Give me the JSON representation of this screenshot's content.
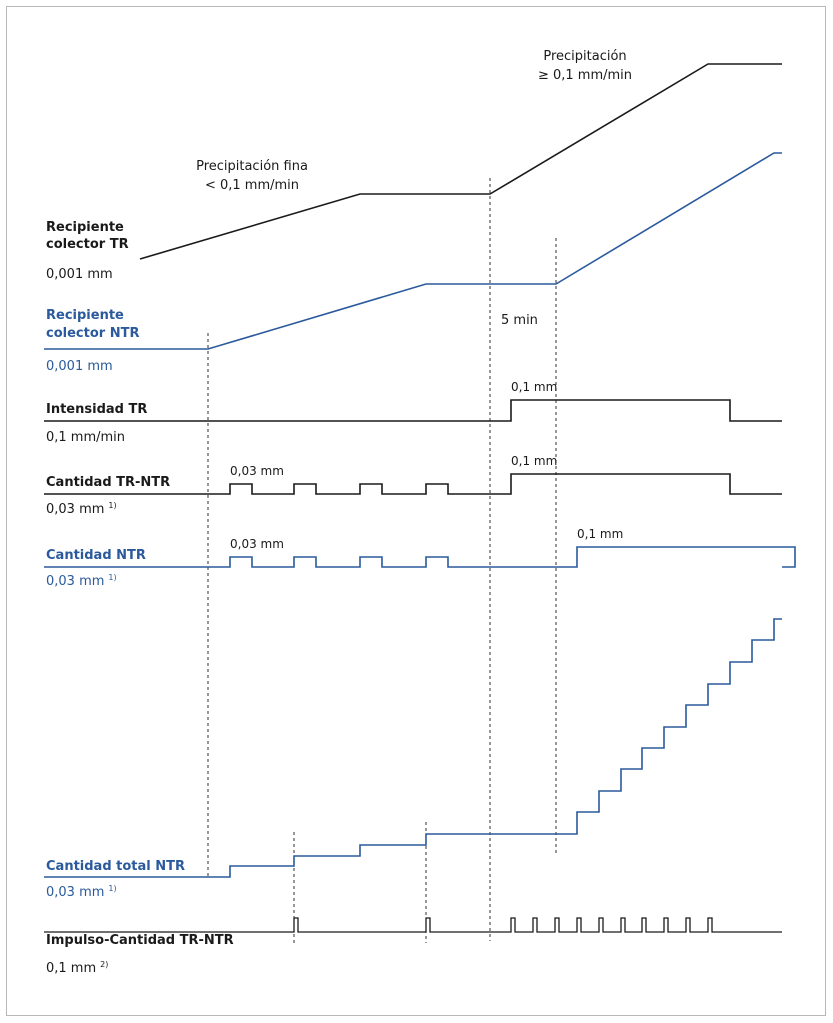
{
  "colors": {
    "black": "#1a1a1a",
    "blue": "#2a5a9c",
    "frame": "#b8b8b8"
  },
  "rows": {
    "tr_collector": {
      "label_line1": "Recipiente",
      "label_line2": "colector TR",
      "unit": "0,001 mm"
    },
    "ntr_collector": {
      "label_line1": "Recipiente",
      "label_line2": "colector NTR",
      "unit": "0,001 mm"
    },
    "tr_intensity": {
      "label": "Intensidad TR",
      "unit": "0,1 mm/min"
    },
    "tr_ntr_amount": {
      "label": "Cantidad TR-NTR",
      "unit": "0,03 mm",
      "unit_note": "1)"
    },
    "ntr_amount": {
      "label": "Cantidad NTR",
      "unit": "0,03 mm",
      "unit_note": "1)"
    },
    "ntr_total": {
      "label": "Cantidad total NTR",
      "unit": "0,03 mm",
      "unit_note": "1)"
    },
    "pulse": {
      "label": "Impulso-Cantidad TR-NTR",
      "unit": "0,1 mm",
      "unit_note": "2)"
    }
  },
  "annotations": {
    "fine_precip_line1": "Precipitación fina",
    "fine_precip_line2": "< 0,1 mm/min",
    "precip_line1": "Precipitación",
    "precip_line2": "≥ 0,1 mm/min",
    "five_min": "5 min",
    "intensity_value": "0,1 mm",
    "tr_ntr_small": "0,03 mm",
    "tr_ntr_large": "0,1 mm",
    "ntr_small": "0,03 mm",
    "ntr_large": "0,1 mm"
  }
}
